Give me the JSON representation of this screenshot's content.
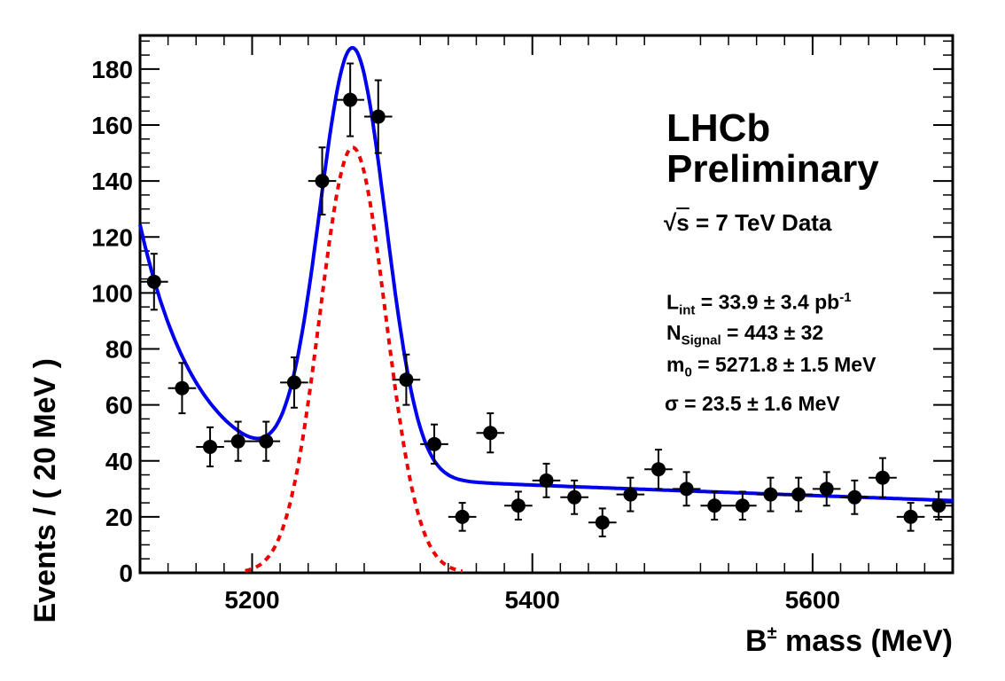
{
  "chart_data": {
    "type": "scatter",
    "xlabel_main": "B",
    "xlabel_sup": "±",
    "xlabel_rest": " mass  (MeV)",
    "ylabel": "Events / ( 20 MeV )",
    "xlim": [
      5120,
      5700
    ],
    "ylim": [
      0,
      192
    ],
    "x_ticks": [
      5200,
      5400,
      5600
    ],
    "y_ticks": [
      0,
      20,
      40,
      60,
      80,
      100,
      120,
      140,
      160,
      180
    ],
    "bin_half_width": 10,
    "series": [
      {
        "name": "Data",
        "style": "points",
        "x": [
          5130,
          5150,
          5170,
          5190,
          5210,
          5230,
          5250,
          5270,
          5290,
          5310,
          5330,
          5350,
          5370,
          5390,
          5410,
          5430,
          5450,
          5470,
          5490,
          5510,
          5530,
          5550,
          5570,
          5590,
          5610,
          5630,
          5650,
          5670,
          5690
        ],
        "y": [
          104,
          66,
          45,
          47,
          47,
          68,
          140,
          169,
          163,
          69,
          46,
          20,
          50,
          24,
          33,
          27,
          18,
          28,
          37,
          30,
          24,
          24,
          28,
          28,
          30,
          27,
          34,
          20,
          24
        ],
        "err": [
          10,
          9,
          7,
          7,
          7,
          9,
          12,
          13,
          13,
          9,
          7,
          5,
          7,
          5,
          6,
          6,
          5,
          6,
          7,
          6,
          5,
          5,
          6,
          6,
          6,
          6,
          7,
          5,
          5
        ]
      },
      {
        "name": "Total fit",
        "style": "line",
        "color": "#0000ee",
        "model": {
          "signal_amp": 152,
          "mean": 5271.8,
          "sigma": 23.5,
          "bkg_level_at_5350": 32.2,
          "bkg_slope_per_100": -1.83,
          "exp_amp": 88,
          "exp_start": 5120,
          "exp_decay": 40
        }
      },
      {
        "name": "Signal",
        "style": "dashed",
        "color": "#ee0000",
        "model": {
          "amp": 152,
          "mean": 5271.8,
          "sigma": 23.5
        }
      }
    ]
  },
  "annotations": {
    "experiment": "LHCb",
    "status": "Preliminary",
    "sqrt_symbol": "√",
    "sqrt_arg": "s",
    "energy": " = 7 TeV Data",
    "lumi_label": "L",
    "lumi_sub": "int",
    "lumi_value": " = 33.9 ± 3.4 pb",
    "lumi_sup": "-1",
    "nsig_label": "N",
    "nsig_sub": "Signal",
    "nsig_value": " = 443 ± 32",
    "mass_label": "m",
    "mass_sub": "0",
    "mass_value": " = 5271.8 ± 1.5 MeV",
    "sigma_value": "σ = 23.5 ± 1.6 MeV"
  }
}
